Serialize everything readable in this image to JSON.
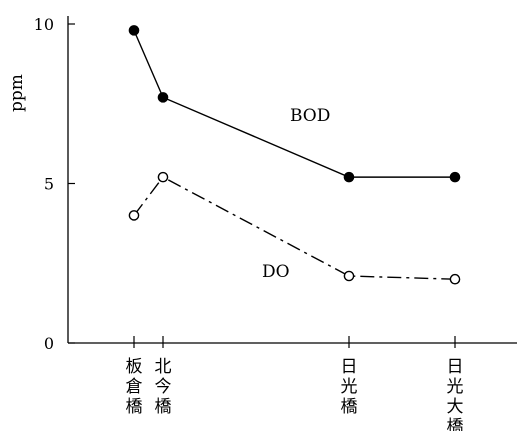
{
  "chart_data": {
    "type": "line",
    "ylabel": "ppm",
    "ylim": [
      0,
      10
    ],
    "yticks": [
      0,
      5,
      10
    ],
    "categories": [
      "板倉橋",
      "北今橋",
      "日光橋",
      "日光大橋"
    ],
    "series": [
      {
        "name": "BOD",
        "values": [
          9.8,
          7.7,
          5.2,
          5.2
        ],
        "marker": "filled-circle",
        "line": "solid",
        "color": "#000000"
      },
      {
        "name": "DO",
        "values": [
          4.0,
          5.2,
          2.1,
          2.0
        ],
        "marker": "open-circle",
        "line": "dash-dot",
        "color": "#000000"
      }
    ],
    "grid": false,
    "legend": "inline labels"
  }
}
